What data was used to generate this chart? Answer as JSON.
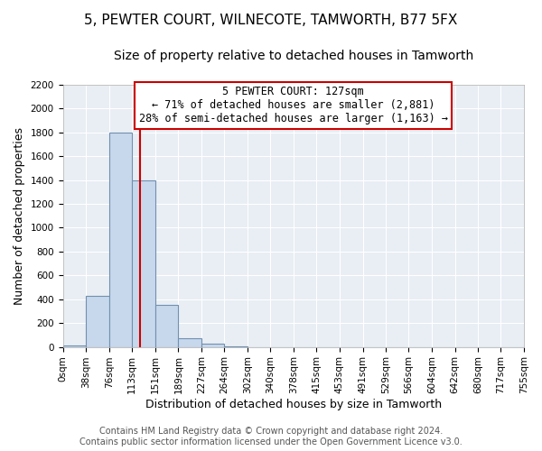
{
  "title": "5, PEWTER COURT, WILNECOTE, TAMWORTH, B77 5FX",
  "subtitle": "Size of property relative to detached houses in Tamworth",
  "xlabel": "Distribution of detached houses by size in Tamworth",
  "ylabel": "Number of detached properties",
  "bin_edges": [
    0,
    38,
    76,
    113,
    151,
    189,
    227,
    264,
    302,
    340,
    378,
    415,
    453,
    491,
    529,
    566,
    604,
    642,
    680,
    717,
    755
  ],
  "bar_heights": [
    15,
    425,
    1800,
    1400,
    350,
    70,
    25,
    5,
    0,
    0,
    0,
    0,
    0,
    0,
    0,
    0,
    0,
    0,
    0,
    0
  ],
  "bar_color": "#c8d8ec",
  "bar_edgecolor": "#7090b0",
  "bar_linewidth": 0.8,
  "vline_x": 127,
  "vline_color": "#cc0000",
  "vline_linewidth": 1.5,
  "ylim": [
    0,
    2200
  ],
  "yticks": [
    0,
    200,
    400,
    600,
    800,
    1000,
    1200,
    1400,
    1600,
    1800,
    2000,
    2200
  ],
  "xtick_labels": [
    "0sqm",
    "38sqm",
    "76sqm",
    "113sqm",
    "151sqm",
    "189sqm",
    "227sqm",
    "264sqm",
    "302sqm",
    "340sqm",
    "378sqm",
    "415sqm",
    "453sqm",
    "491sqm",
    "529sqm",
    "566sqm",
    "604sqm",
    "642sqm",
    "680sqm",
    "717sqm",
    "755sqm"
  ],
  "annotation_title": "5 PEWTER COURT: 127sqm",
  "annotation_line1": "← 71% of detached houses are smaller (2,881)",
  "annotation_line2": "28% of semi-detached houses are larger (1,163) →",
  "annotation_box_color": "white",
  "annotation_box_edgecolor": "#cc0000",
  "footer_line1": "Contains HM Land Registry data © Crown copyright and database right 2024.",
  "footer_line2": "Contains public sector information licensed under the Open Government Licence v3.0.",
  "fig_background_color": "#ffffff",
  "plot_background_color": "#e8eef4",
  "grid_color": "#ffffff",
  "title_fontsize": 11,
  "subtitle_fontsize": 10,
  "axis_label_fontsize": 9,
  "tick_fontsize": 7.5,
  "footer_fontsize": 7,
  "annotation_fontsize": 8.5
}
